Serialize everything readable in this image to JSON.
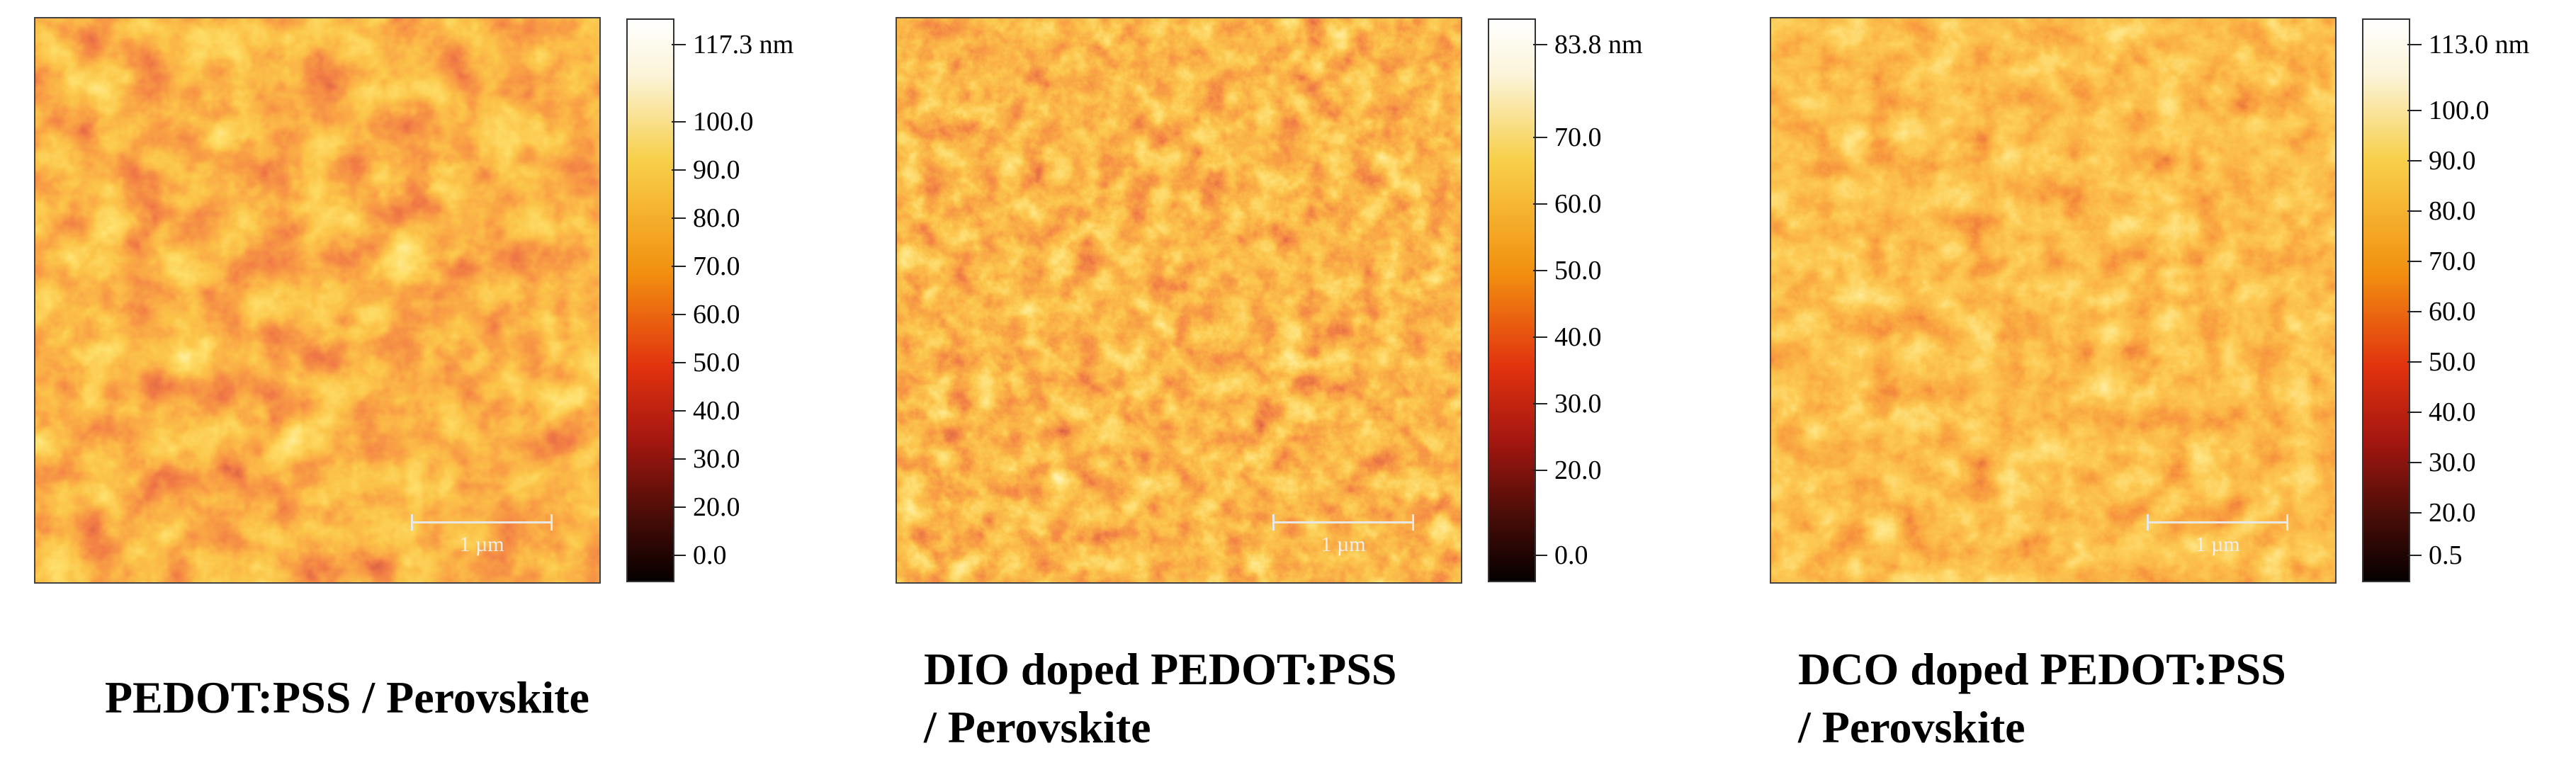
{
  "panels": [
    {
      "id": "pedot",
      "caption_lines": [
        "PEDOT:PSS / Perovskite"
      ],
      "scale_label": "1 µm",
      "colorbar_labels": [
        "117.3 nm",
        "100.0",
        "90.0",
        "80.0",
        "70.0",
        "60.0",
        "50.0",
        "40.0",
        "30.0",
        "20.0",
        "0.0"
      ]
    },
    {
      "id": "dio",
      "caption_lines": [
        "DIO doped PEDOT:PSS",
        "/ Perovskite"
      ],
      "scale_label": "1 µm",
      "colorbar_labels": [
        "83.8 nm",
        "70.0",
        "60.0",
        "50.0",
        "40.0",
        "30.0",
        "20.0",
        "0.0"
      ]
    },
    {
      "id": "dco",
      "caption_lines": [
        "DCO doped PEDOT:PSS",
        "/ Perovskite"
      ],
      "scale_label": "1 µm",
      "colorbar_labels": [
        "113.0 nm",
        "100.0",
        "90.0",
        "80.0",
        "70.0",
        "60.0",
        "50.0",
        "40.0",
        "30.0",
        "20.0",
        "0.5"
      ]
    }
  ],
  "colors": {
    "colormap": [
      "#050000",
      "#4c0d08",
      "#a41710",
      "#e1320f",
      "#f29010",
      "#f7cf4a",
      "#fbf3d7",
      "#ffffff"
    ],
    "scalebar": "#e8e8e8"
  }
}
